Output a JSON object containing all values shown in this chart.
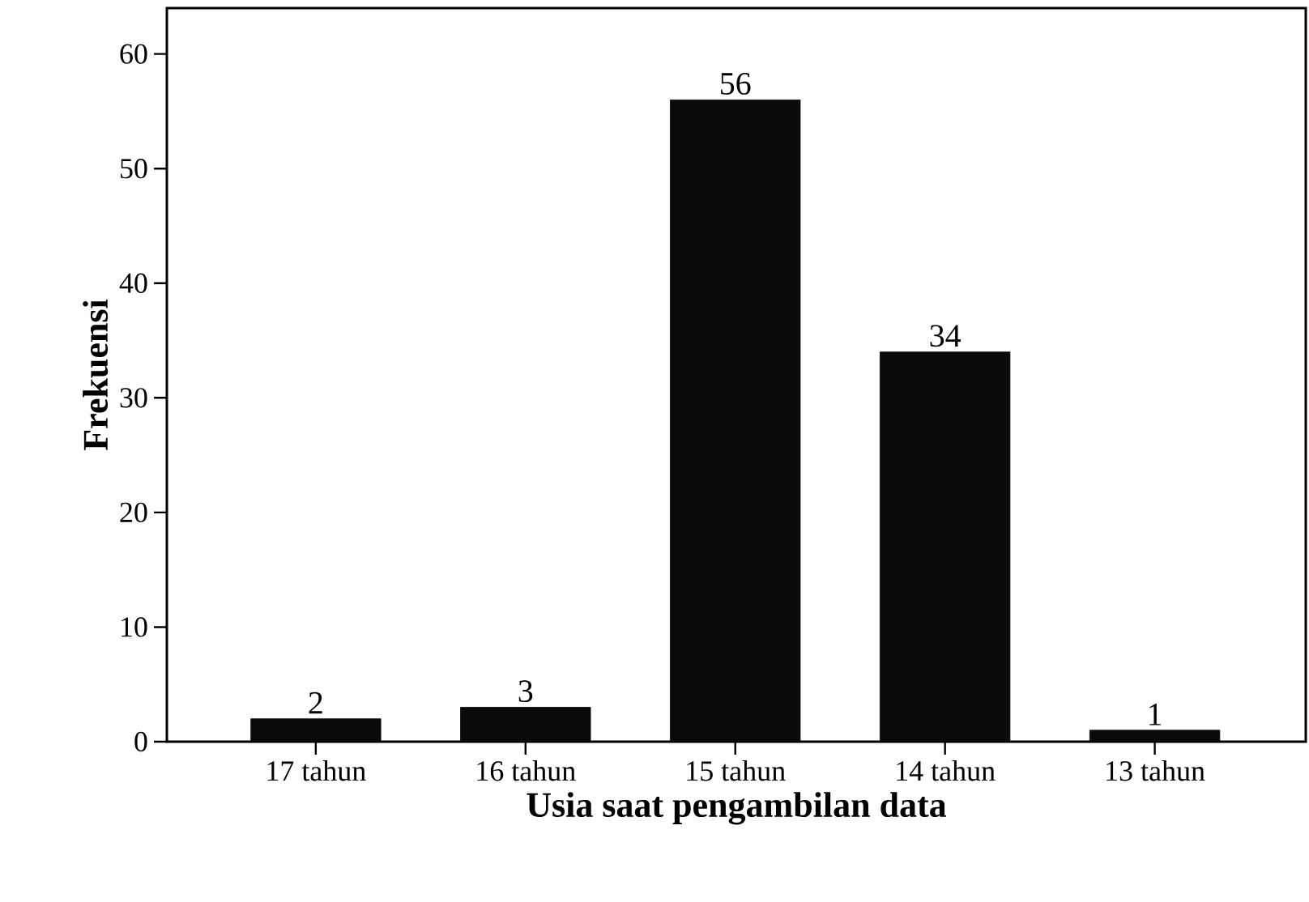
{
  "chart_data": {
    "type": "bar",
    "xlabel": "Usia saat pengambilan data",
    "ylabel": "Frekuensi",
    "categories": [
      "17 tahun",
      "16 tahun",
      "15 tahun",
      "14 tahun",
      "13 tahun"
    ],
    "values": [
      2,
      3,
      56,
      34,
      1
    ],
    "color": "#0a0a0a",
    "data_labels": true,
    "ylim": [
      0,
      64
    ],
    "yticks": [
      0,
      10,
      20,
      30,
      40,
      50,
      60
    ]
  }
}
